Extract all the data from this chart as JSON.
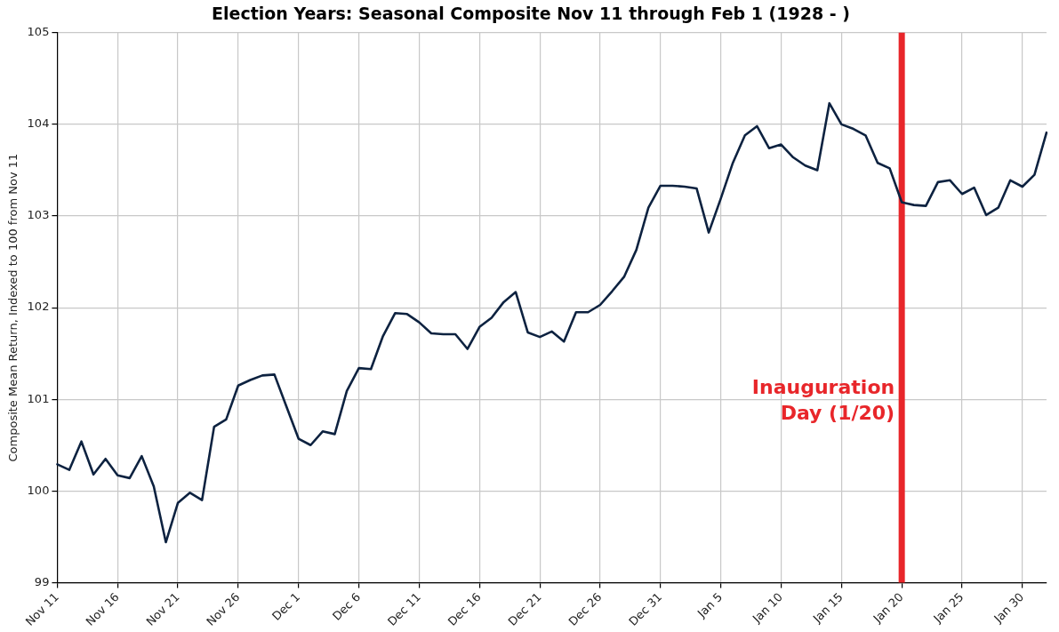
{
  "chart_data": {
    "type": "line",
    "title": "Election Years: Seasonal Composite Nov 11 through Feb 1 (1928 - )",
    "ylabel": "Composite Mean Return, Indexed to 100 from Nov 11",
    "categories": [
      "Nov 11",
      null,
      null,
      null,
      null,
      "Nov 16",
      null,
      null,
      null,
      null,
      "Nov 21",
      null,
      null,
      null,
      null,
      "Nov 26",
      null,
      null,
      null,
      null,
      "Dec 1",
      null,
      null,
      null,
      null,
      "Dec 6",
      null,
      null,
      null,
      null,
      "Dec 11",
      null,
      null,
      null,
      null,
      "Dec 16",
      null,
      null,
      null,
      null,
      "Dec 21",
      null,
      null,
      null,
      null,
      "Dec 26",
      null,
      null,
      null,
      null,
      "Dec 31",
      null,
      null,
      null,
      null,
      "Jan 5",
      null,
      null,
      null,
      null,
      "Jan 10",
      null,
      null,
      null,
      null,
      "Jan 15",
      null,
      null,
      null,
      null,
      "Jan 20",
      null,
      null,
      null,
      null,
      "Jan 25",
      null,
      null,
      null,
      null,
      "Jan 30",
      null,
      null
    ],
    "series": [
      {
        "color": "#0d2240",
        "values": [
          100.29,
          100.23,
          100.54,
          100.18,
          100.35,
          100.17,
          100.14,
          100.38,
          100.05,
          99.44,
          99.87,
          99.98,
          99.9,
          100.7,
          100.78,
          101.15,
          101.21,
          101.26,
          101.27,
          100.92,
          100.57,
          100.5,
          100.65,
          100.62,
          101.09,
          101.34,
          101.33,
          101.69,
          101.94,
          101.93,
          101.84,
          101.72,
          101.71,
          101.71,
          101.55,
          101.79,
          101.89,
          102.06,
          102.17,
          101.73,
          101.68,
          101.74,
          101.63,
          101.95,
          101.95,
          102.03,
          102.18,
          102.34,
          102.63,
          103.09,
          103.33,
          103.33,
          103.32,
          103.3,
          102.82,
          103.19,
          103.58,
          103.88,
          103.98,
          103.74,
          103.78,
          103.64,
          103.55,
          103.5,
          104.23,
          104.0,
          103.95,
          103.88,
          103.58,
          103.52,
          103.15,
          103.12,
          103.11,
          103.37,
          103.39,
          103.24,
          103.31,
          103.01,
          103.09,
          103.39,
          103.32,
          103.45,
          103.91
        ]
      }
    ],
    "ylim": [
      99,
      105
    ],
    "yticks": [
      99,
      100,
      101,
      102,
      103,
      104,
      105
    ],
    "ref_lines": [
      {
        "axis": "x",
        "value": "Jan 20",
        "label": "Inauguration\nDay (1/20)",
        "color": "#e8262a"
      }
    ],
    "grid": true,
    "legend": false,
    "marker": "none",
    "line_style": "solid"
  }
}
